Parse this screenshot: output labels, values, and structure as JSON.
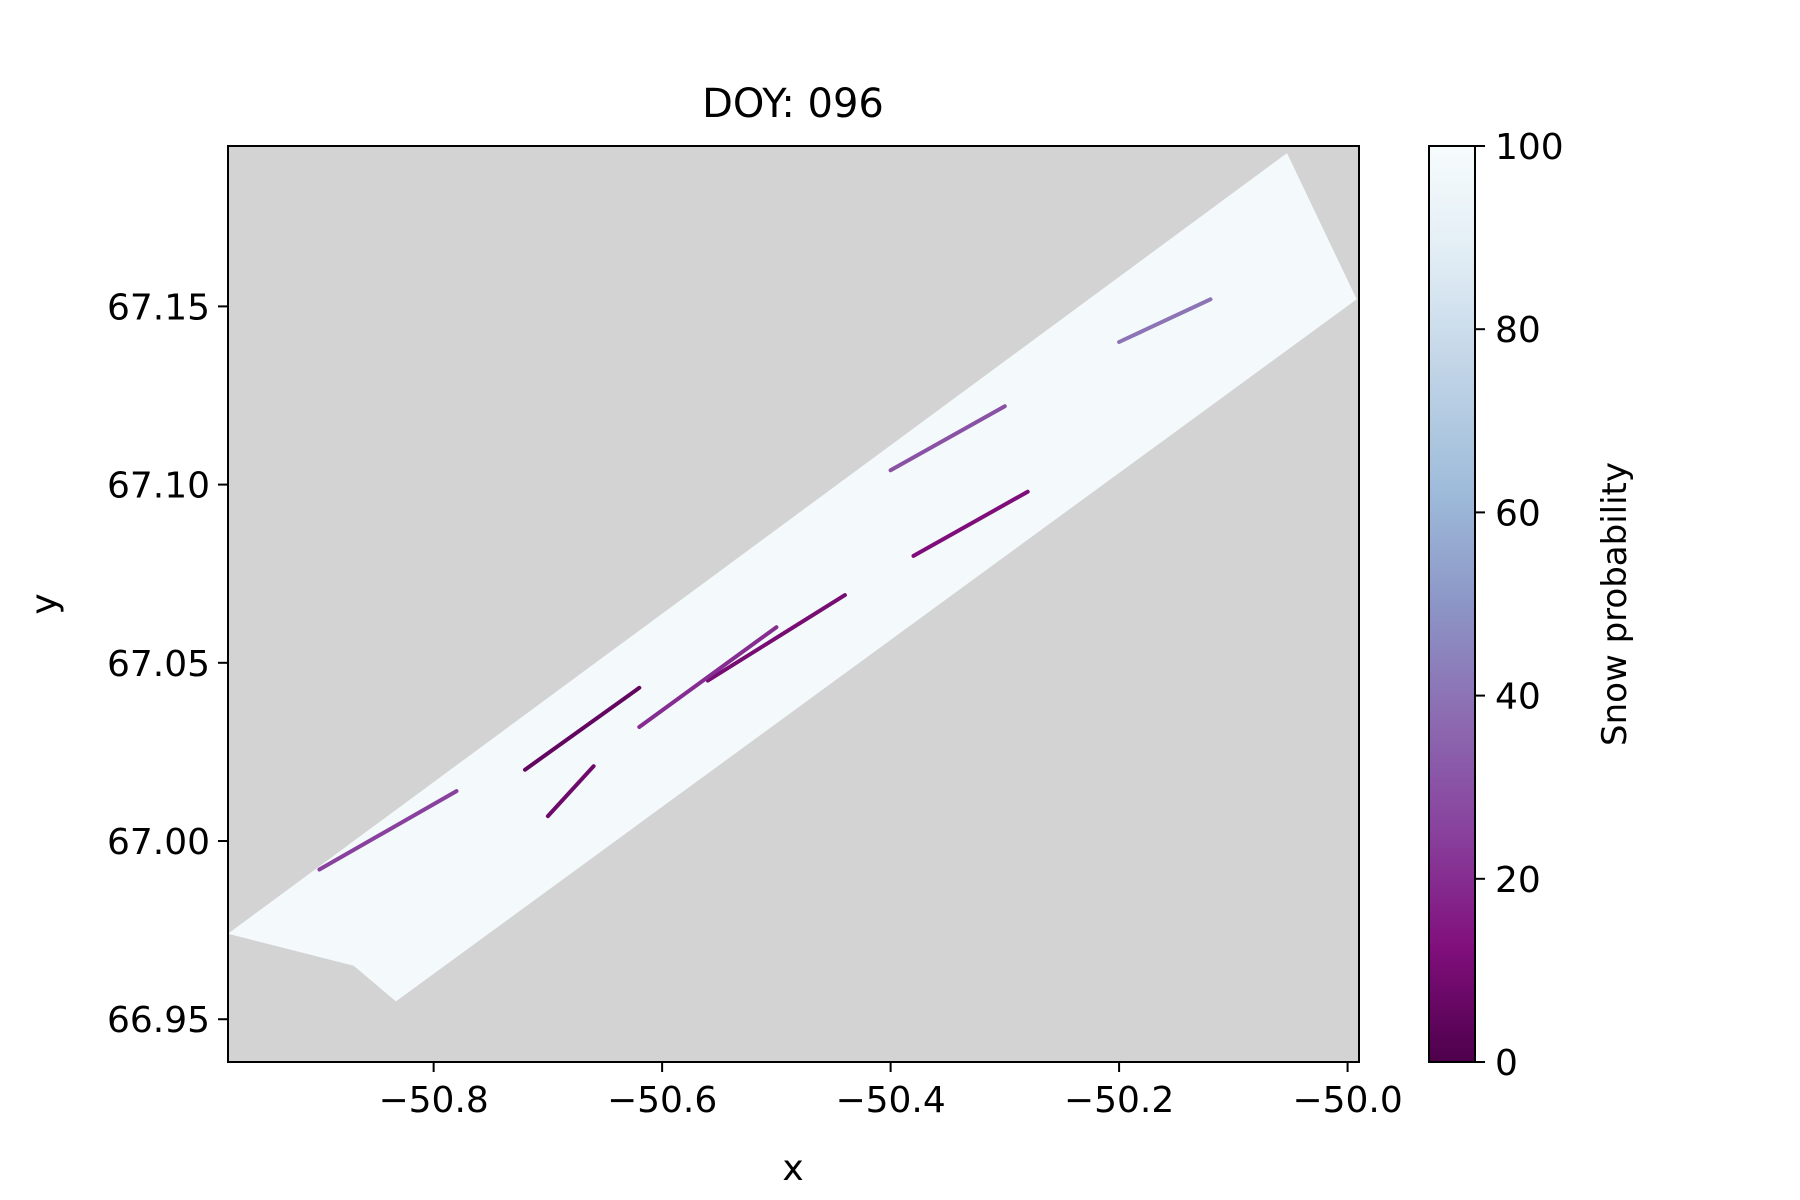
{
  "chart_data": {
    "type": "heatmap",
    "title": "DOY: 096",
    "xlabel": "x",
    "ylabel": "y",
    "xlim": [
      -50.98,
      -49.99
    ],
    "ylim": [
      66.938,
      67.195
    ],
    "xticks": [
      -50.8,
      -50.6,
      -50.4,
      -50.2,
      -50.0
    ],
    "xtick_labels": [
      "−50.8",
      "−50.6",
      "−50.4",
      "−50.2",
      "−50.0"
    ],
    "yticks": [
      66.95,
      67.0,
      67.05,
      67.1,
      67.15
    ],
    "ytick_labels": [
      "66.95",
      "67.00",
      "67.05",
      "67.10",
      "67.15"
    ],
    "background_color": "#d3d3d3",
    "grid": false,
    "colormap": "BuPu_r",
    "colorbar": {
      "label": "Snow probability",
      "range": [
        0,
        100
      ],
      "ticks": [
        0,
        20,
        40,
        60,
        80,
        100
      ],
      "tick_labels": [
        "0",
        "20",
        "40",
        "60",
        "80",
        "100"
      ],
      "stops": [
        "#4d004b",
        "#810f7c",
        "#88419d",
        "#8c6bb1",
        "#8c96c6",
        "#9ebcda",
        "#bfd3e6",
        "#e0ecf4",
        "#f7fcfd"
      ]
    },
    "swath_outline": [
      [
        -50.98,
        66.974
      ],
      [
        -50.053,
        67.193
      ],
      [
        -49.992,
        67.152
      ],
      [
        -50.833,
        66.955
      ],
      [
        -50.87,
        66.965
      ]
    ],
    "low_probability_streaks": [
      {
        "from": [
          -50.72,
          67.02
        ],
        "to": [
          -50.62,
          67.043
        ],
        "value": 5
      },
      {
        "from": [
          -50.56,
          67.045
        ],
        "to": [
          -50.44,
          67.069
        ],
        "value": 10
      },
      {
        "from": [
          -50.62,
          67.032
        ],
        "to": [
          -50.5,
          67.06
        ],
        "value": 20
      },
      {
        "from": [
          -50.38,
          67.08
        ],
        "to": [
          -50.28,
          67.098
        ],
        "value": 12
      },
      {
        "from": [
          -50.4,
          67.104
        ],
        "to": [
          -50.3,
          67.122
        ],
        "value": 30
      },
      {
        "from": [
          -50.9,
          66.992
        ],
        "to": [
          -50.78,
          67.014
        ],
        "value": 25
      },
      {
        "from": [
          -50.7,
          67.007
        ],
        "to": [
          -50.66,
          67.021
        ],
        "value": 8
      },
      {
        "from": [
          -50.2,
          67.14
        ],
        "to": [
          -50.12,
          67.152
        ],
        "value": 40
      }
    ]
  }
}
